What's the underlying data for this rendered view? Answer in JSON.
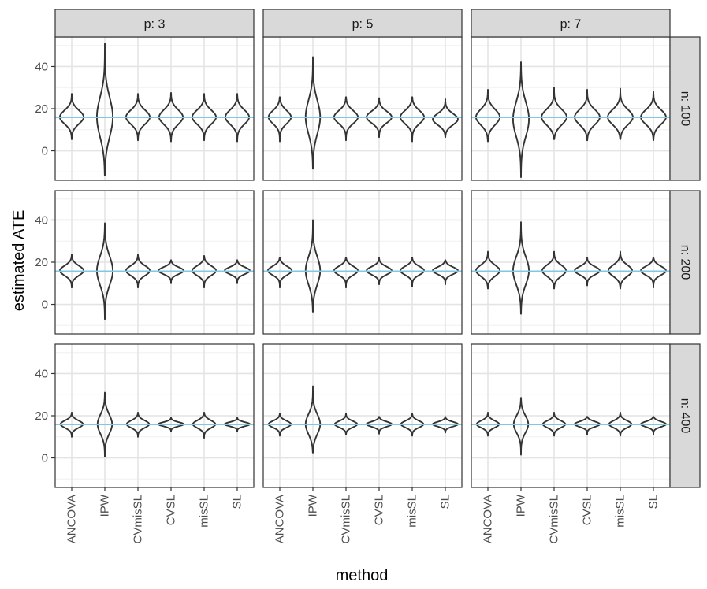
{
  "chart_data": {
    "type": "violin",
    "xlabel": "method",
    "ylabel": "estimated ATE",
    "methods": [
      "ANCOVA",
      "IPW",
      "CVmisSL",
      "CVSL",
      "misSL",
      "SL"
    ],
    "yticks": [
      0,
      20,
      40
    ],
    "ylim": [
      -14,
      54
    ],
    "reference_line": {
      "value": 15.8,
      "color": "#7ec8e3"
    },
    "grid": true,
    "col_facet": {
      "var": "p",
      "labels": [
        "p: 3",
        "p: 5",
        "p: 7"
      ]
    },
    "row_facet": {
      "var": "n",
      "labels": [
        "n: 100",
        "n: 200",
        "n: 400"
      ]
    },
    "panels": [
      [
        [
          {
            "min": 5.5,
            "max": 27,
            "median": 16,
            "spread": 0.36
          },
          {
            "min": -11.5,
            "max": 51,
            "median": 16,
            "spread": 0.24
          },
          {
            "min": 5,
            "max": 27,
            "median": 16,
            "spread": 0.36
          },
          {
            "min": 4.5,
            "max": 27.5,
            "median": 16,
            "spread": 0.36
          },
          {
            "min": 5,
            "max": 27,
            "median": 16,
            "spread": 0.36
          },
          {
            "min": 4.5,
            "max": 27,
            "median": 16,
            "spread": 0.36
          }
        ],
        [
          {
            "min": 4.5,
            "max": 25.5,
            "median": 16,
            "spread": 0.34
          },
          {
            "min": -8.5,
            "max": 44.5,
            "median": 16,
            "spread": 0.22
          },
          {
            "min": 5,
            "max": 25.5,
            "median": 16,
            "spread": 0.36
          },
          {
            "min": 6.5,
            "max": 25,
            "median": 16,
            "spread": 0.38
          },
          {
            "min": 4.5,
            "max": 25.5,
            "median": 16,
            "spread": 0.36
          },
          {
            "min": 6.5,
            "max": 24.5,
            "median": 15,
            "spread": 0.38
          }
        ],
        [
          {
            "min": 4.5,
            "max": 29,
            "median": 16,
            "spread": 0.36
          },
          {
            "min": -12.5,
            "max": 42,
            "median": 15,
            "spread": 0.24
          },
          {
            "min": 5.5,
            "max": 30,
            "median": 16,
            "spread": 0.38
          },
          {
            "min": 5,
            "max": 29,
            "median": 16,
            "spread": 0.38
          },
          {
            "min": 5.5,
            "max": 29.5,
            "median": 16,
            "spread": 0.38
          },
          {
            "min": 5,
            "max": 28,
            "median": 16,
            "spread": 0.38
          }
        ]
      ],
      [
        [
          {
            "min": 8,
            "max": 23.5,
            "median": 16,
            "spread": 0.36
          },
          {
            "min": -7,
            "max": 38.5,
            "median": 16,
            "spread": 0.24
          },
          {
            "min": 8,
            "max": 23.5,
            "median": 16,
            "spread": 0.36
          },
          {
            "min": 10,
            "max": 21,
            "median": 16,
            "spread": 0.38
          },
          {
            "min": 8,
            "max": 23,
            "median": 16,
            "spread": 0.36
          },
          {
            "min": 10,
            "max": 21,
            "median": 16,
            "spread": 0.38
          }
        ],
        [
          {
            "min": 8,
            "max": 22,
            "median": 16,
            "spread": 0.36
          },
          {
            "min": -3.5,
            "max": 40,
            "median": 16,
            "spread": 0.22
          },
          {
            "min": 8,
            "max": 22,
            "median": 16,
            "spread": 0.36
          },
          {
            "min": 9.5,
            "max": 22,
            "median": 16,
            "spread": 0.38
          },
          {
            "min": 8.5,
            "max": 22,
            "median": 16,
            "spread": 0.36
          },
          {
            "min": 9.5,
            "max": 21,
            "median": 16,
            "spread": 0.38
          }
        ],
        [
          {
            "min": 7.5,
            "max": 25,
            "median": 16,
            "spread": 0.36
          },
          {
            "min": -4.5,
            "max": 39,
            "median": 16,
            "spread": 0.24
          },
          {
            "min": 7.5,
            "max": 25,
            "median": 16,
            "spread": 0.36
          },
          {
            "min": 9,
            "max": 22,
            "median": 16,
            "spread": 0.38
          },
          {
            "min": 7.5,
            "max": 25,
            "median": 16,
            "spread": 0.36
          },
          {
            "min": 8,
            "max": 22,
            "median": 16,
            "spread": 0.38
          }
        ]
      ],
      [
        [
          {
            "min": 10,
            "max": 21.5,
            "median": 16,
            "spread": 0.34
          },
          {
            "min": 0.5,
            "max": 31,
            "median": 16,
            "spread": 0.22
          },
          {
            "min": 10,
            "max": 21.5,
            "median": 16,
            "spread": 0.34
          },
          {
            "min": 12.5,
            "max": 19,
            "median": 16,
            "spread": 0.38
          },
          {
            "min": 9.5,
            "max": 21.5,
            "median": 16,
            "spread": 0.34
          },
          {
            "min": 12.5,
            "max": 19,
            "median": 16,
            "spread": 0.38
          }
        ],
        [
          {
            "min": 10.5,
            "max": 21,
            "median": 16,
            "spread": 0.34
          },
          {
            "min": 2.5,
            "max": 34,
            "median": 16,
            "spread": 0.22
          },
          {
            "min": 11,
            "max": 21,
            "median": 16,
            "spread": 0.34
          },
          {
            "min": 11.5,
            "max": 19.5,
            "median": 16,
            "spread": 0.38
          },
          {
            "min": 10.5,
            "max": 21,
            "median": 16,
            "spread": 0.34
          },
          {
            "min": 12,
            "max": 19.5,
            "median": 16,
            "spread": 0.38
          }
        ],
        [
          {
            "min": 10.5,
            "max": 21.5,
            "median": 16,
            "spread": 0.34
          },
          {
            "min": 1.5,
            "max": 28.5,
            "median": 16,
            "spread": 0.22
          },
          {
            "min": 10.5,
            "max": 21.5,
            "median": 16,
            "spread": 0.34
          },
          {
            "min": 11,
            "max": 19.5,
            "median": 16,
            "spread": 0.38
          },
          {
            "min": 10.5,
            "max": 21.5,
            "median": 16,
            "spread": 0.34
          },
          {
            "min": 11,
            "max": 19.5,
            "median": 16,
            "spread": 0.38
          }
        ]
      ]
    ]
  }
}
